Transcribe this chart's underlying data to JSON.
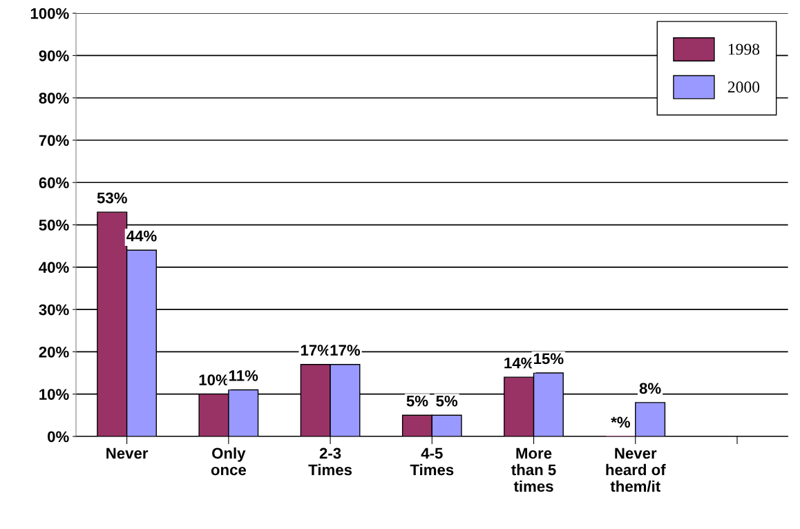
{
  "chart_data": {
    "type": "bar",
    "categories": [
      "Never",
      "Only\nonce",
      "2-3\nTimes",
      "4-5\nTimes",
      "More\nthan 5\ntimes",
      "Never\nheard of\nthem/it",
      null
    ],
    "series": [
      {
        "name": "1998",
        "color": "#993366",
        "values": [
          53,
          10,
          17,
          5,
          14,
          0,
          null
        ],
        "value_labels": [
          "53%",
          "10%",
          "17%",
          "5%",
          "14%",
          "*%",
          null
        ]
      },
      {
        "name": "2000",
        "color": "#9999ff",
        "values": [
          44,
          11,
          17,
          5,
          15,
          8,
          null
        ],
        "value_labels": [
          "44%",
          "11%",
          "17%",
          "5%",
          "15%",
          "8%",
          null
        ]
      }
    ],
    "ylim": [
      0,
      100
    ],
    "yticks": [
      {
        "value": 0,
        "label": "0%"
      },
      {
        "value": 10,
        "label": "10%"
      },
      {
        "value": 20,
        "label": "20%"
      },
      {
        "value": 30,
        "label": "30%"
      },
      {
        "value": 40,
        "label": "40%"
      },
      {
        "value": 50,
        "label": "50%"
      },
      {
        "value": 60,
        "label": "60%"
      },
      {
        "value": 70,
        "label": "70%"
      },
      {
        "value": 80,
        "label": "80%"
      },
      {
        "value": 90,
        "label": "90%"
      },
      {
        "value": 100,
        "label": "100%"
      }
    ],
    "grid": "y",
    "legend": "right"
  }
}
